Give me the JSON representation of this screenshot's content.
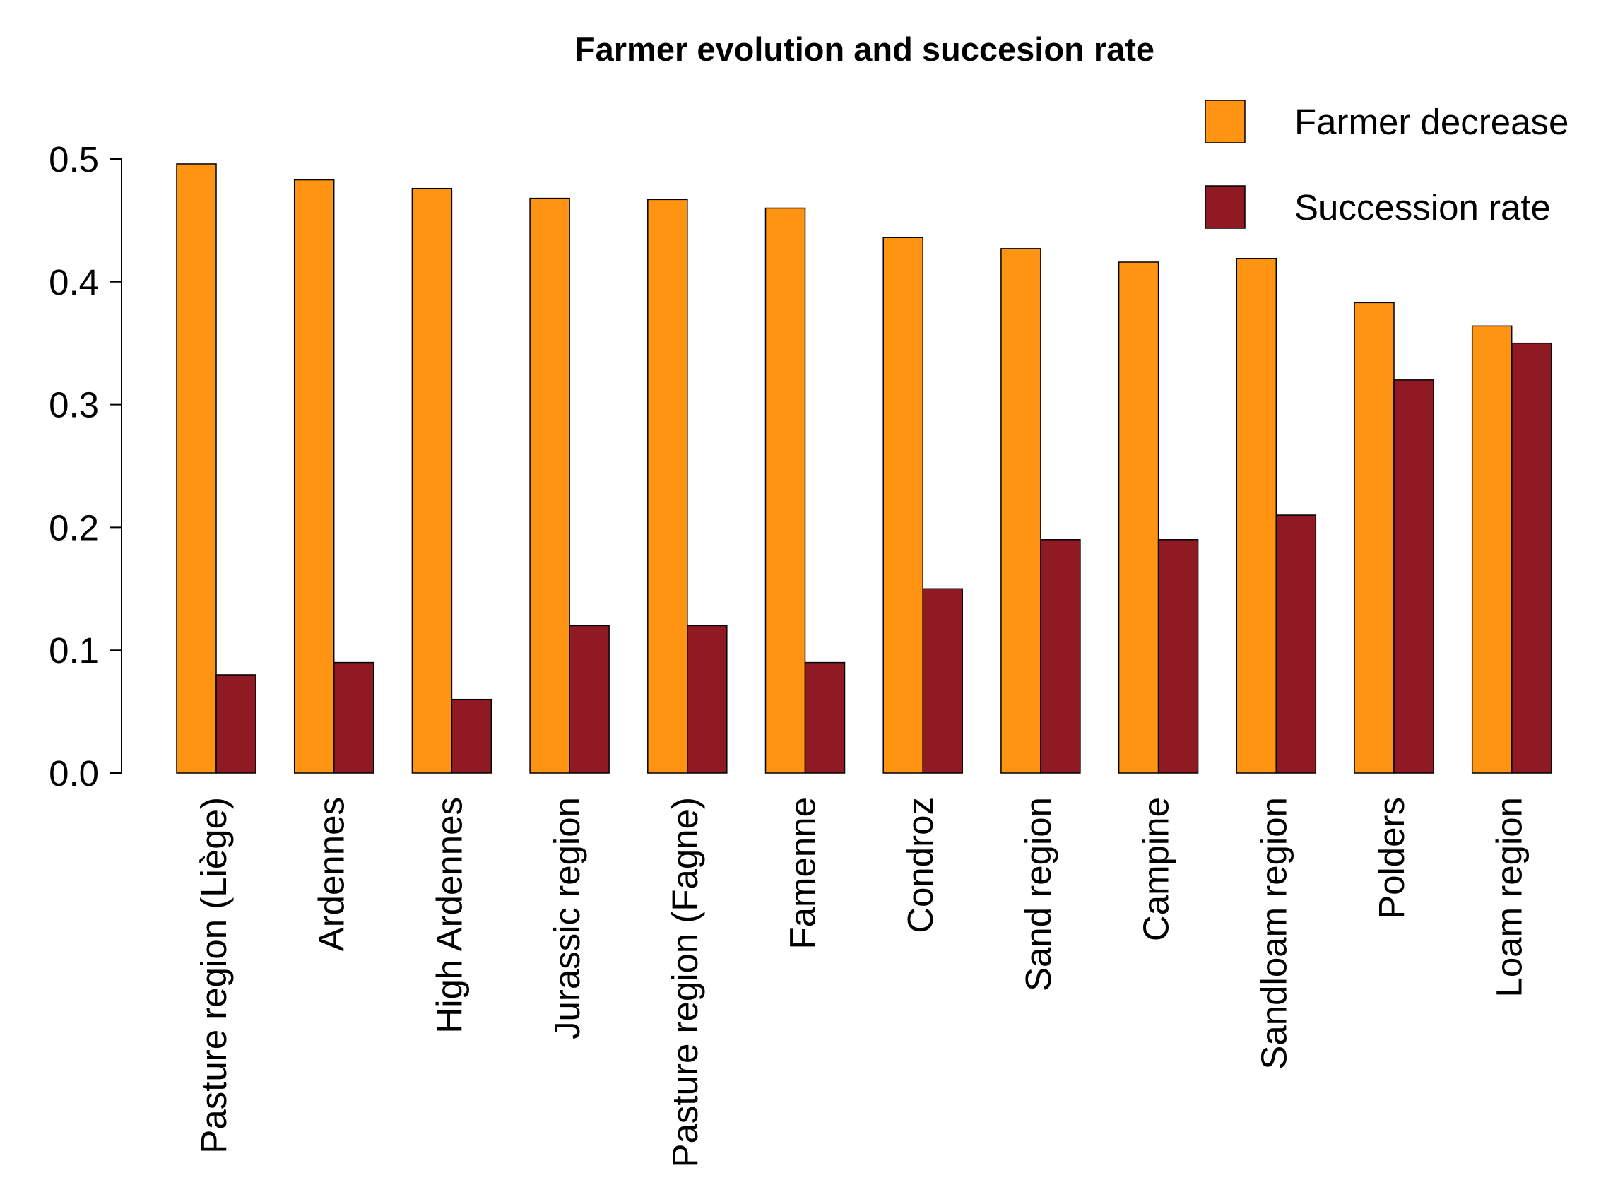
{
  "chart_data": {
    "type": "bar",
    "title": "Farmer evolution and succesion rate",
    "xlabel": "",
    "ylabel": "",
    "ylim": [
      0,
      0.5
    ],
    "yticks": [
      "0.0",
      "0.1",
      "0.2",
      "0.3",
      "0.4",
      "0.5"
    ],
    "categories": [
      "Pasture region (Liège)",
      "Ardennes",
      "High Ardennes",
      "Jurassic region",
      "Pasture region (Fagne)",
      "Famenne",
      "Condroz",
      "Sand region",
      "Campine",
      "Sandloam region",
      "Polders",
      "Loam region"
    ],
    "series": [
      {
        "name": "Farmer decrease",
        "color": "#FF9412",
        "values": [
          0.496,
          0.483,
          0.476,
          0.468,
          0.467,
          0.46,
          0.436,
          0.427,
          0.416,
          0.419,
          0.383,
          0.364
        ]
      },
      {
        "name": "Succession rate",
        "color": "#8F1A24",
        "values": [
          0.08,
          0.09,
          0.06,
          0.12,
          0.12,
          0.09,
          0.15,
          0.19,
          0.19,
          0.21,
          0.32,
          0.35
        ]
      }
    ],
    "legend_position": "top-right",
    "grid": false
  }
}
